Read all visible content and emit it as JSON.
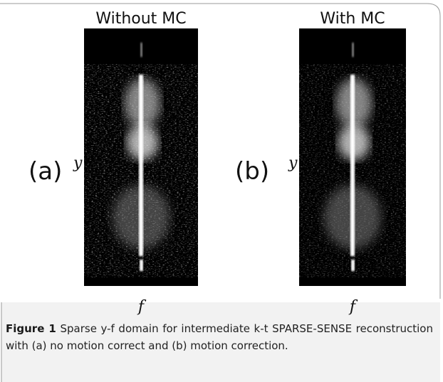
{
  "panels": [
    {
      "label": "(a)",
      "title": "Without MC",
      "y_axis": "y",
      "x_axis": "f"
    },
    {
      "label": "(b)",
      "title": "With MC",
      "y_axis": "y",
      "x_axis": "f"
    }
  ],
  "caption": {
    "label": "Figure 1",
    "text": "Sparse y-f domain for intermediate k-t SPARSE-SENSE reconstruction with (a) no motion correct and (b) motion correction."
  }
}
